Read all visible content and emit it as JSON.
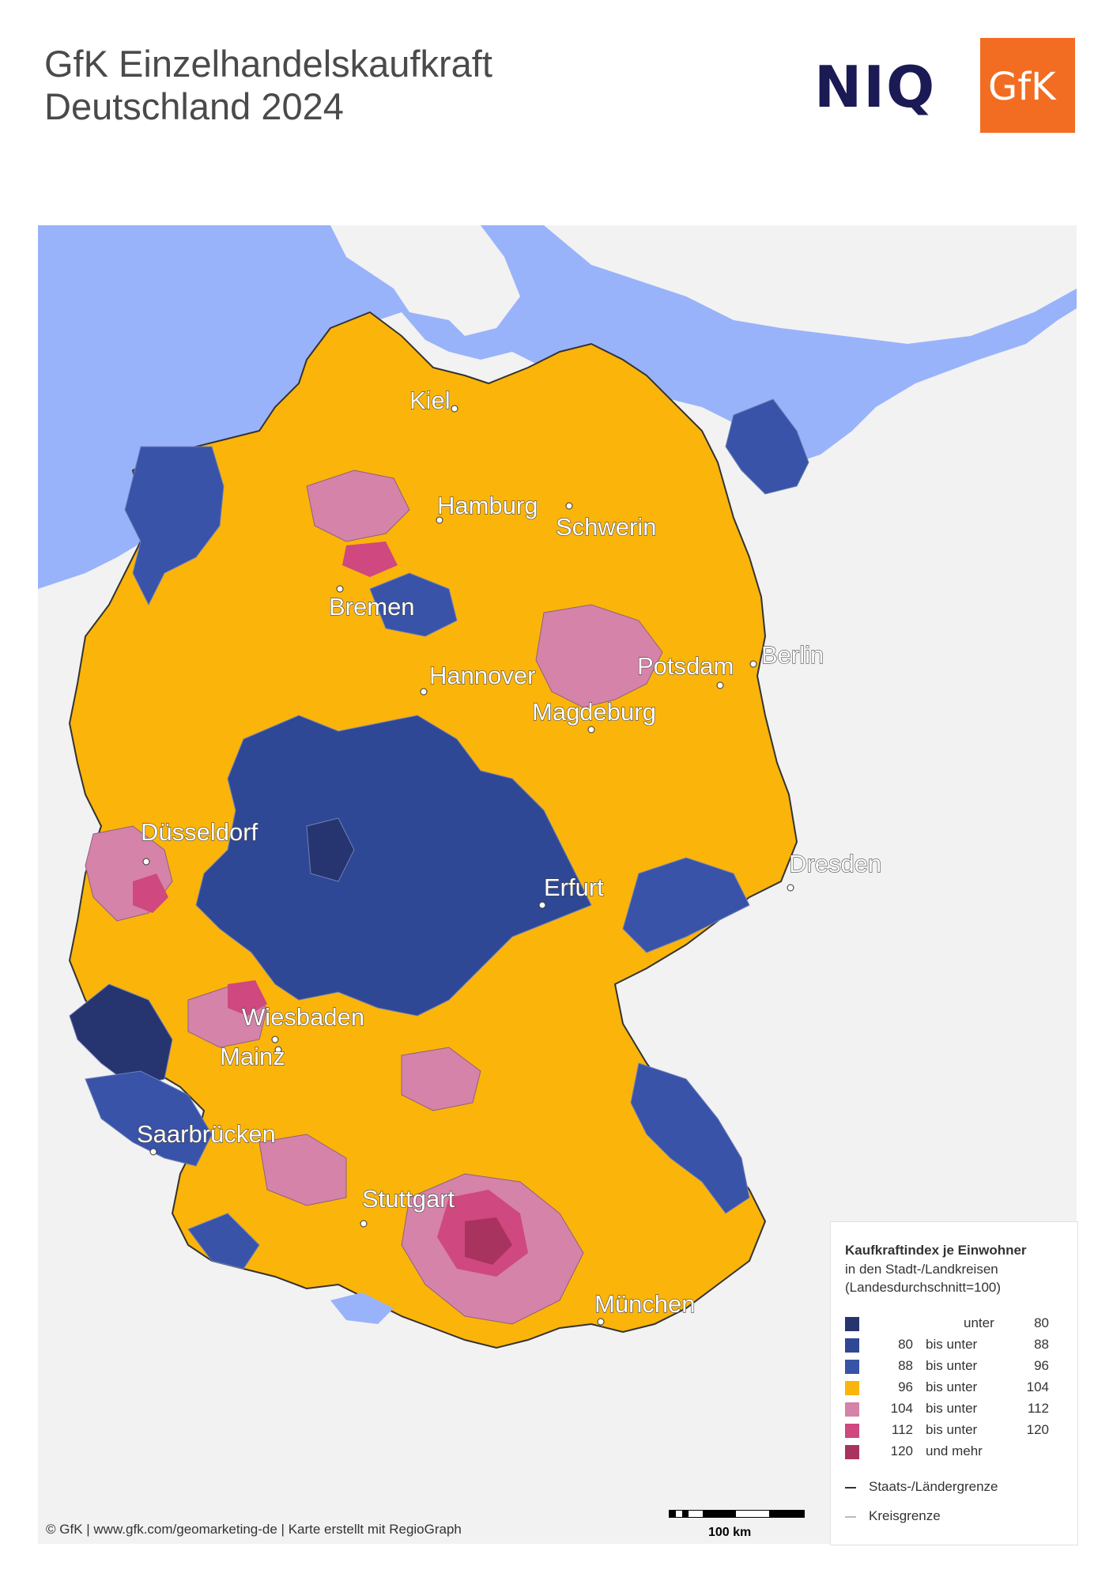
{
  "header": {
    "title_line1": "GfK Einzelhandelskaufkraft",
    "title_line2": "Deutschland 2024",
    "logo_niq": "NIQ",
    "logo_gfk": "GfK"
  },
  "colors": {
    "sea": "#99b3fb",
    "land_outside": "#f2f2f2",
    "under_80": "#26346f",
    "80_88": "#2f4895",
    "88_96": "#3853a8",
    "96_104": "#fbb40a",
    "104_112": "#d583a8",
    "112_120": "#cf4880",
    "120_plus": "#a8335e",
    "state_border": "#333333",
    "district_border": "#9a9a9a"
  },
  "cities": [
    {
      "name": "Kiel"
    },
    {
      "name": "Hamburg"
    },
    {
      "name": "Schwerin"
    },
    {
      "name": "Bremen"
    },
    {
      "name": "Hannover"
    },
    {
      "name": "Potsdam"
    },
    {
      "name": "Berlin"
    },
    {
      "name": "Magdeburg"
    },
    {
      "name": "Düsseldorf"
    },
    {
      "name": "Erfurt"
    },
    {
      "name": "Dresden"
    },
    {
      "name": "Wiesbaden"
    },
    {
      "name": "Mainz"
    },
    {
      "name": "Saarbrücken"
    },
    {
      "name": "Stuttgart"
    },
    {
      "name": "München"
    }
  ],
  "legend": {
    "title": "Kaufkraftindex je Einwohner",
    "subtitle1": "in den Stadt-/Landkreisen",
    "subtitle2": "(Landesdurchschnitt=100)",
    "classes": [
      {
        "lo": "",
        "mid": "unter",
        "hi": "80",
        "color": "#26346f"
      },
      {
        "lo": "80",
        "mid": "bis unter",
        "hi": "88",
        "color": "#2f4895"
      },
      {
        "lo": "88",
        "mid": "bis unter",
        "hi": "96",
        "color": "#3853a8"
      },
      {
        "lo": "96",
        "mid": "bis unter",
        "hi": "104",
        "color": "#fbb40a"
      },
      {
        "lo": "104",
        "mid": "bis unter",
        "hi": "112",
        "color": "#d583a8"
      },
      {
        "lo": "112",
        "mid": "bis unter",
        "hi": "120",
        "color": "#cf4880"
      },
      {
        "lo": "120",
        "mid": "und mehr",
        "hi": "",
        "color": "#a8335e"
      }
    ],
    "line_state": "Staats-/Ländergrenze",
    "line_district": "Kreisgrenze"
  },
  "footer": {
    "copyright": "© GfK | www.gfk.com/geomarketing-de | Karte erstellt mit RegioGraph",
    "scale_label": "100 km"
  }
}
